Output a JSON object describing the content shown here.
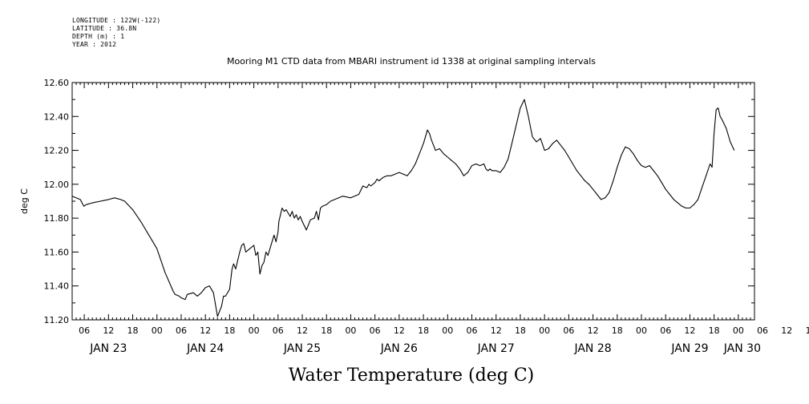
{
  "metadata": {
    "longitude": "LONGITUDE : 122W(-122)",
    "latitude": "LATITUDE : 36.8N",
    "depth": "DEPTH (m) : 1",
    "year": "YEAR : 2012"
  },
  "chart_data": {
    "type": "line",
    "title": "Mooring M1 CTD data from MBARI instrument id 1338 at original sampling intervals",
    "xlabel": "Water Temperature (deg C)",
    "ylabel": "deg C",
    "ylim": [
      11.2,
      12.6
    ],
    "yticks": [
      "11.20",
      "11.40",
      "11.60",
      "11.80",
      "12.00",
      "12.20",
      "12.40",
      "12.60"
    ],
    "xlim": [
      3,
      172
    ],
    "hour_ticks": [
      "06",
      "12",
      "18",
      "00",
      "06",
      "12",
      "18",
      "00",
      "06",
      "12",
      "18",
      "00",
      "06",
      "12",
      "18",
      "00",
      "06",
      "12",
      "18",
      "00",
      "06",
      "12",
      "18",
      "00",
      "06",
      "12",
      "18",
      "00",
      "06",
      "12",
      "18",
      "00"
    ],
    "day_labels": [
      "JAN 23",
      "JAN 24",
      "JAN 25",
      "JAN 26",
      "JAN 27",
      "JAN 28",
      "JAN 29",
      "JAN 30"
    ],
    "grid": false,
    "series": [
      {
        "x": [
          3,
          5,
          5.9,
          6.5,
          8,
          10,
          12,
          13.5,
          15,
          16,
          18,
          20,
          22,
          24,
          26,
          28,
          28.5,
          29.5,
          30,
          31,
          31.5,
          33,
          34,
          35,
          36,
          37,
          38,
          39,
          40,
          40.5,
          41,
          42,
          42.6,
          43,
          43.5,
          44.5,
          45,
          45.5,
          46,
          47,
          48,
          48.5,
          49,
          49.5,
          50,
          50.5,
          51,
          51.5,
          52,
          53,
          53.5,
          54,
          54.2,
          55,
          55.5,
          56,
          57,
          57.5,
          58,
          58.5,
          59,
          59.5,
          60,
          61,
          62,
          63,
          63.5,
          64,
          64.5,
          65,
          66,
          67,
          68,
          70,
          72,
          74,
          75,
          76,
          76.5,
          77,
          78,
          78.5,
          79,
          80,
          81,
          82,
          83,
          84,
          85,
          86,
          87,
          88,
          89,
          90,
          90.5,
          91,
          91.5,
          92,
          93,
          94,
          95,
          96,
          97,
          98,
          99,
          100,
          101,
          102,
          103,
          104,
          105,
          105.5,
          106,
          106.5,
          107,
          108,
          109,
          110,
          111,
          112,
          113,
          114,
          115,
          116,
          117,
          118,
          119,
          120,
          121,
          122,
          123,
          124,
          125,
          126,
          127,
          128,
          129,
          130,
          131,
          132,
          133,
          134,
          135,
          136,
          137,
          138,
          139,
          140,
          141,
          142,
          143,
          144,
          145,
          146,
          147,
          148,
          149,
          150,
          151,
          152,
          153,
          154,
          155,
          156,
          157,
          158,
          159,
          160,
          161,
          161.5,
          162,
          162.5,
          163,
          163.5,
          164,
          165,
          166,
          167
        ],
        "values": [
          11.93,
          11.91,
          11.87,
          11.88,
          11.89,
          11.9,
          11.91,
          11.92,
          11.91,
          11.9,
          11.85,
          11.78,
          11.7,
          11.62,
          11.48,
          11.37,
          11.35,
          11.34,
          11.33,
          11.32,
          11.35,
          11.36,
          11.34,
          11.36,
          11.39,
          11.4,
          11.36,
          11.22,
          11.28,
          11.34,
          11.34,
          11.38,
          11.5,
          11.53,
          11.5,
          11.6,
          11.64,
          11.65,
          11.6,
          11.62,
          11.64,
          11.58,
          11.6,
          11.47,
          11.52,
          11.54,
          11.6,
          11.58,
          11.62,
          11.7,
          11.66,
          11.72,
          11.78,
          11.86,
          11.84,
          11.85,
          11.81,
          11.84,
          11.8,
          11.82,
          11.79,
          11.81,
          11.78,
          11.73,
          11.79,
          11.8,
          11.84,
          11.79,
          11.86,
          11.87,
          11.88,
          11.9,
          11.91,
          11.93,
          11.92,
          11.94,
          11.99,
          11.98,
          12.0,
          11.99,
          12.01,
          12.03,
          12.02,
          12.04,
          12.05,
          12.05,
          12.06,
          12.07,
          12.06,
          12.05,
          12.08,
          12.12,
          12.18,
          12.24,
          12.28,
          12.32,
          12.3,
          12.26,
          12.2,
          12.21,
          12.18,
          12.16,
          12.14,
          12.12,
          12.09,
          12.05,
          12.07,
          12.11,
          12.12,
          12.11,
          12.12,
          12.09,
          12.08,
          12.09,
          12.08,
          12.08,
          12.07,
          12.1,
          12.15,
          12.25,
          12.35,
          12.45,
          12.5,
          12.4,
          12.28,
          12.25,
          12.27,
          12.2,
          12.21,
          12.24,
          12.26,
          12.23,
          12.2,
          12.16,
          12.12,
          12.08,
          12.05,
          12.02,
          12.0,
          11.97,
          11.94,
          11.91,
          11.92,
          11.95,
          12.02,
          12.1,
          12.17,
          12.22,
          12.21,
          12.18,
          12.14,
          12.11,
          12.1,
          12.11,
          12.08,
          12.05,
          12.01,
          11.97,
          11.94,
          11.91,
          11.89,
          11.87,
          11.86,
          11.86,
          11.88,
          11.91,
          11.98,
          12.05,
          12.12,
          12.1,
          12.3,
          12.44,
          12.45,
          12.4,
          12.38,
          12.33,
          12.25,
          12.2
        ]
      }
    ]
  }
}
